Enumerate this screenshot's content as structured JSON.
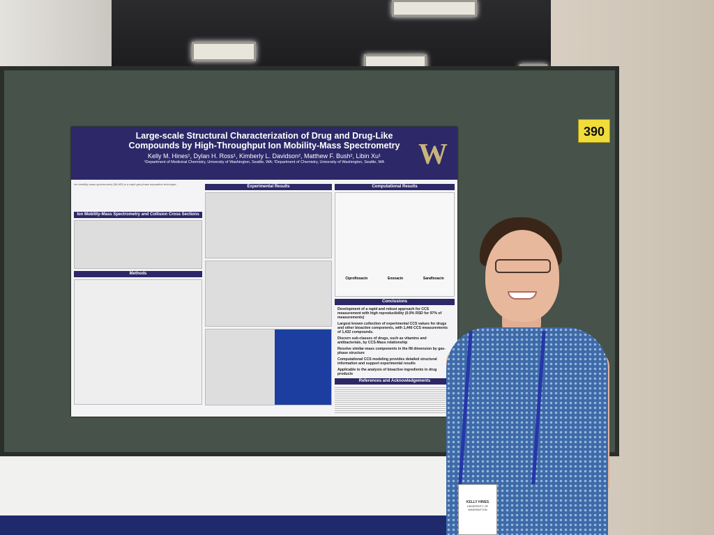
{
  "booth": {
    "number": "390"
  },
  "poster": {
    "title": "Large-scale Structural Characterization of Drug and Drug-Like Compounds by High-Throughput Ion Mobility-Mass Spectrometry",
    "authors": "Kelly M. Hines¹, Dylan H. Ross¹, Kimberly L. Davidson², Matthew F. Bush², Libin Xu¹",
    "affiliations": "¹Department of Medicinal Chemistry, University of Washington, Seattle, WA; ²Department of Chemistry, University of Washington, Seattle, WA",
    "logo": "W",
    "sections": {
      "imms": "Ion Mobility-Mass Spectrometry and Collision Cross Sections",
      "methods": "Methods",
      "experimental": "Experimental Results",
      "computational": "Computational Results",
      "conclusions": "Conclusions",
      "references": "References and Acknowledgements"
    },
    "conclusions": [
      "Development of a rapid and robust approach for CCS measurement with high reproducibility (0.9% RSD for 97% of measurements)",
      "Largest known collection of experimental CCS values for drugs and other bioactive components, with 1,440 CCS measurements of 1,432 compounds.",
      "Discern sub-classes of drugs, such as vitamins and antibacterials, by CCS-Mass relationship",
      "Resolve similar-mass components in the IM dimension by gas-phase structure",
      "Computational CCS modeling provides detailed structural information and support experimental results",
      "Applicable to the analysis of bioactive ingredients in drug products"
    ],
    "molecules": [
      "Ciprofloxacin",
      "Enoxacin",
      "Sarafloxacin"
    ]
  },
  "name_badge": {
    "name": "KELLY HINES",
    "org": "UNIVERSITY OF WASHINGTON"
  },
  "colors": {
    "poster_header": "#2d2868",
    "board": "#46524a",
    "booth_sign": "#f1dd3a",
    "uw_gold": "#c8b47a"
  }
}
